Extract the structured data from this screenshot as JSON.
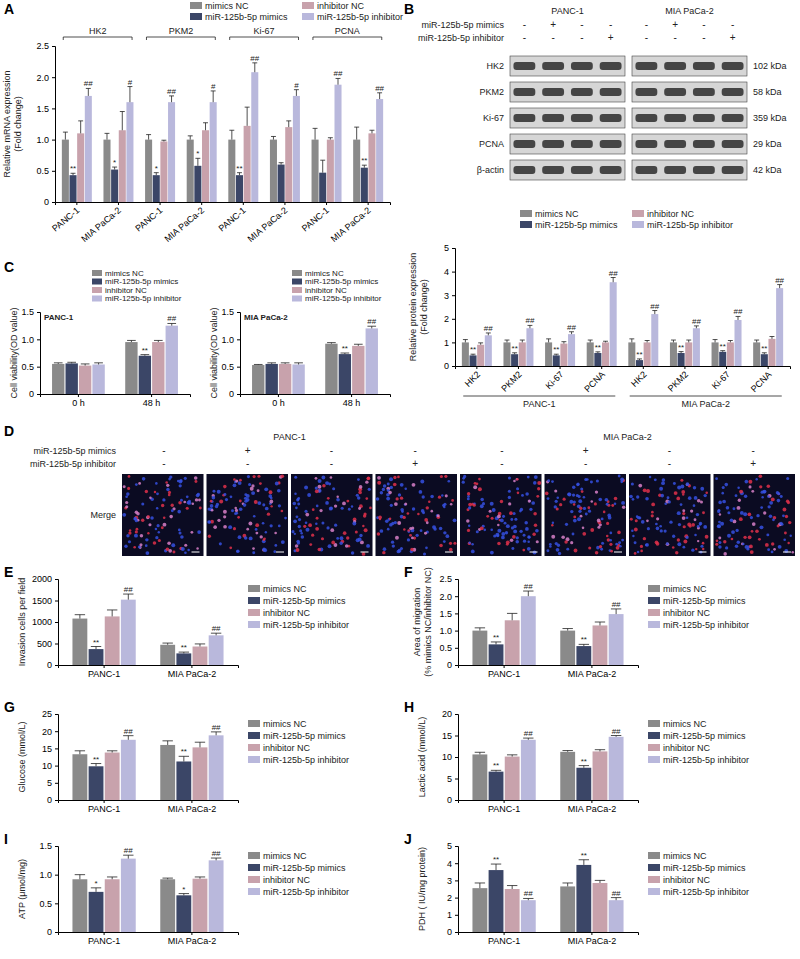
{
  "chart_data": [
    {
      "type": "bar",
      "panel": "A",
      "ylabel": [
        "Relative mRNA expression",
        "(Fold change)"
      ],
      "group_labels": [
        "HK2",
        "PKM2",
        "Ki-67",
        "PCNA"
      ],
      "categories": [
        "PANC-1",
        "MIA PaCa-2",
        "PANC-1",
        "MIA PaCa-2",
        "PANC-1",
        "MIA PaCa-2",
        "PANC-1",
        "MIA PaCa-2"
      ],
      "ylim": [
        0,
        2.5
      ],
      "yticks": [
        0,
        0.5,
        {
          "value": 1,
          "label": "1.0"
        },
        1.5,
        {
          "value": 2,
          "label": "2.0"
        },
        2.5
      ],
      "legend": "top",
      "series": [
        {
          "name": "mimics NC",
          "color": "#8a8a8a",
          "values": [
            1.0,
            1.0,
            1.0,
            1.0,
            1.0,
            1.0,
            1.0,
            1.0
          ],
          "errors": [
            0.12,
            0.1,
            0.08,
            0.06,
            0.15,
            0.05,
            0.18,
            0.2
          ]
        },
        {
          "name": "miR-125b-5p mimics",
          "color": "#3b4667",
          "values": [
            0.43,
            0.52,
            0.43,
            0.58,
            0.43,
            0.6,
            0.47,
            0.55
          ],
          "errors": [
            0.03,
            0.04,
            0.04,
            0.12,
            0.04,
            0.03,
            0.2,
            0.04
          ],
          "significance": [
            "**",
            "*",
            "*",
            "*",
            "**",
            null,
            null,
            "**"
          ]
        },
        {
          "name": "inhibitor NC",
          "color": "#c8a2ac",
          "values": [
            1.1,
            1.15,
            0.97,
            1.15,
            1.22,
            1.2,
            1.0,
            1.1
          ],
          "errors": [
            0.2,
            0.3,
            0.02,
            0.12,
            0.3,
            0.1,
            0.03,
            0.05
          ]
        },
        {
          "name": "miR-125b-5p inhibitor",
          "color": "#b9b8dc",
          "values": [
            1.7,
            1.6,
            1.6,
            1.6,
            2.08,
            1.7,
            1.88,
            1.65
          ],
          "errors": [
            0.12,
            0.25,
            0.1,
            0.18,
            0.15,
            0.1,
            0.1,
            0.1
          ],
          "significance": [
            "##",
            "#",
            "##",
            "#",
            "##",
            "#",
            "##",
            "##"
          ]
        }
      ]
    },
    {
      "type": "blot",
      "panel": "B",
      "cell_lines": [
        "PANC-1",
        "MIA PaCa-2"
      ],
      "conditions": [
        {
          "label": "miR-125b-5p mimics",
          "signs": [
            "-",
            "+",
            "-",
            "-",
            "-",
            "+",
            "-",
            "-"
          ]
        },
        {
          "label": "miR-125b-5p inhibitor",
          "signs": [
            "-",
            "-",
            "-",
            "+",
            "-",
            "-",
            "-",
            "+"
          ]
        }
      ],
      "bands": [
        {
          "label": "HK2",
          "size": "102 kDa"
        },
        {
          "label": "PKM2",
          "size": "58 kDa"
        },
        {
          "label": "Ki-67",
          "size": "359 kDa"
        },
        {
          "label": "PCNA",
          "size": "29 kDa"
        },
        {
          "label": "β-actin",
          "size": "42 kDa"
        }
      ]
    },
    {
      "type": "bar",
      "ylabel": [
        "Relative protein expression",
        "(Fold change)"
      ],
      "group_labels": [
        "PANC-1",
        "MIA PaCa-2"
      ],
      "categories": [
        "HK2",
        "PKM2",
        "Ki-67",
        "PCNA",
        "HK2",
        "PKM2",
        "Ki-67",
        "PCNA"
      ],
      "ylim": [
        0,
        5
      ],
      "yticks": [
        0,
        1,
        2,
        3,
        4,
        5
      ],
      "legend": "top",
      "series": [
        {
          "name": "mimics NC",
          "color": "#8a8a8a",
          "values": [
            1.0,
            1.0,
            1.0,
            1.0,
            1.0,
            1.0,
            1.0,
            1.0
          ],
          "errors": [
            0.12,
            0.1,
            0.15,
            0.1,
            0.15,
            0.1,
            0.12,
            0.1
          ]
        },
        {
          "name": "miR-125b-5p mimics",
          "color": "#3b4667",
          "values": [
            0.45,
            0.5,
            0.45,
            0.55,
            0.25,
            0.55,
            0.6,
            0.5
          ],
          "errors": [
            0.05,
            0.06,
            0.05,
            0.05,
            0.05,
            0.06,
            0.05,
            0.06
          ],
          "significance": [
            "**",
            "**",
            "**",
            "**",
            "**",
            "**",
            "**",
            "**"
          ]
        },
        {
          "name": "inhibitor NC",
          "color": "#c8a2ac",
          "values": [
            0.9,
            1.0,
            0.95,
            1.0,
            1.0,
            1.0,
            1.0,
            1.15
          ],
          "errors": [
            0.08,
            0.1,
            0.08,
            0.05,
            0.08,
            0.1,
            0.08,
            0.1
          ]
        },
        {
          "name": "miR-125b-5p inhibitor",
          "color": "#b9b8dc",
          "values": [
            1.3,
            1.6,
            1.35,
            3.55,
            2.2,
            1.6,
            1.95,
            3.3
          ],
          "errors": [
            0.1,
            0.12,
            0.1,
            0.2,
            0.15,
            0.1,
            0.15,
            0.15
          ],
          "significance": [
            "##",
            "##",
            "##",
            "##",
            "##",
            "##",
            "##",
            "##"
          ]
        }
      ]
    },
    {
      "type": "bar",
      "panel": "C",
      "title": "PANC-1",
      "ylabel": [
        "Cell viability(OD value)"
      ],
      "categories": [
        "0 h",
        "48 h"
      ],
      "ylim": [
        0,
        1.5
      ],
      "yticks": [
        0,
        0.5,
        {
          "value": 1,
          "label": "1.0"
        },
        1.5
      ],
      "legend": "top-right",
      "series": [
        {
          "name": "mimics NC",
          "color": "#8a8a8a",
          "values": [
            0.55,
            0.95
          ],
          "errors": [
            0.02,
            0.03
          ]
        },
        {
          "name": "miR-125b-5p mimics",
          "color": "#3b4667",
          "values": [
            0.56,
            0.7
          ],
          "errors": [
            0.02,
            0.02
          ],
          "significance": [
            null,
            "**"
          ]
        },
        {
          "name": "inhibitor NC",
          "color": "#c8a2ac",
          "values": [
            0.52,
            0.95
          ],
          "errors": [
            0.03,
            0.03
          ]
        },
        {
          "name": "miR-125b-5p inhibitor",
          "color": "#b9b8dc",
          "values": [
            0.54,
            1.25
          ],
          "errors": [
            0.03,
            0.04
          ],
          "significance": [
            null,
            "##"
          ]
        }
      ]
    },
    {
      "type": "bar",
      "title": "MIA PaCa-2",
      "ylabel": [
        "Cell viability(OD value)"
      ],
      "categories": [
        "0 h",
        "48 h"
      ],
      "ylim": [
        0,
        1.5
      ],
      "yticks": [
        0,
        0.5,
        {
          "value": 1,
          "label": "1.0"
        },
        1.5
      ],
      "legend": "top-right",
      "series": [
        {
          "name": "mimics NC",
          "color": "#8a8a8a",
          "values": [
            0.53,
            0.92
          ],
          "errors": [
            0.01,
            0.02
          ]
        },
        {
          "name": "miR-125b-5p mimics",
          "color": "#3b4667",
          "values": [
            0.55,
            0.73
          ],
          "errors": [
            0.02,
            0.02
          ],
          "significance": [
            null,
            "**"
          ]
        },
        {
          "name": "inhibitor NC",
          "color": "#c8a2ac",
          "values": [
            0.55,
            0.88
          ],
          "errors": [
            0.02,
            0.03
          ]
        },
        {
          "name": "miR-125b-5p inhibitor",
          "color": "#b9b8dc",
          "values": [
            0.54,
            1.2
          ],
          "errors": [
            0.03,
            0.04
          ],
          "significance": [
            null,
            "##"
          ]
        }
      ]
    },
    {
      "type": "image_grid",
      "panel": "D",
      "cell_lines": [
        "PANC-1",
        "MIA PaCa-2"
      ],
      "row_label": "Merge",
      "conditions": [
        {
          "label": "miR-125b-5p mimics",
          "signs": [
            "-",
            "+",
            "-",
            "-",
            "-",
            "+",
            "-",
            "-"
          ]
        },
        {
          "label": "miR-125b-5p inhibitor",
          "signs": [
            "-",
            "-",
            "-",
            "+",
            "-",
            "-",
            "-",
            "+"
          ]
        }
      ]
    },
    {
      "type": "bar",
      "panel": "E",
      "ylabel": [
        "Invasion cells per field"
      ],
      "categories": [
        "PANC-1",
        "MIA PaCa-2"
      ],
      "ylim": [
        0,
        2000
      ],
      "yticks": [
        0,
        500,
        1000,
        1500,
        2000
      ],
      "legend": "right",
      "series": [
        {
          "name": "mimics NC",
          "color": "#8a8a8a",
          "values": [
            1080,
            470
          ],
          "errors": [
            90,
            40
          ]
        },
        {
          "name": "miR-125b-5p mimics",
          "color": "#3b4667",
          "values": [
            370,
            270
          ],
          "errors": [
            60,
            30
          ],
          "significance": [
            "**",
            "**"
          ]
        },
        {
          "name": "inhibitor NC",
          "color": "#c8a2ac",
          "values": [
            1130,
            430
          ],
          "errors": [
            150,
            60
          ]
        },
        {
          "name": "miR-125b-5p inhibitor",
          "color": "#b9b8dc",
          "values": [
            1520,
            690
          ],
          "errors": [
            130,
            50
          ],
          "significance": [
            "##",
            "##"
          ]
        }
      ]
    },
    {
      "type": "bar",
      "panel": "F",
      "ylabel": [
        "Area of migration",
        "(% mimics NC/inhibitor NC)"
      ],
      "categories": [
        "PANC-1",
        "MIA PaCa-2"
      ],
      "ylim": [
        0,
        2.5
      ],
      "yticks": [
        0,
        0.5,
        {
          "value": 1,
          "label": "1.0"
        },
        1.5,
        {
          "value": 2,
          "label": "2.0"
        },
        2.5
      ],
      "legend": "right",
      "series": [
        {
          "name": "mimics NC",
          "color": "#8a8a8a",
          "values": [
            1.0,
            1.0
          ],
          "errors": [
            0.08,
            0.06
          ]
        },
        {
          "name": "miR-125b-5p mimics",
          "color": "#3b4667",
          "values": [
            0.6,
            0.55
          ],
          "errors": [
            0.07,
            0.05
          ],
          "significance": [
            "**",
            "**"
          ]
        },
        {
          "name": "inhibitor NC",
          "color": "#c8a2ac",
          "values": [
            1.3,
            1.15
          ],
          "errors": [
            0.2,
            0.1
          ]
        },
        {
          "name": "miR-125b-5p inhibitor",
          "color": "#b9b8dc",
          "values": [
            2.0,
            1.48
          ],
          "errors": [
            0.15,
            0.15
          ],
          "significance": [
            "##",
            "##"
          ]
        }
      ]
    },
    {
      "type": "bar",
      "panel": "G",
      "ylabel": [
        "Glucose (mmol/L)"
      ],
      "categories": [
        "PANC-1",
        "MIA PaCa-2"
      ],
      "ylim": [
        0,
        25
      ],
      "yticks": [
        0,
        5,
        10,
        15,
        20,
        25
      ],
      "legend": "right",
      "series": [
        {
          "name": "mimics NC",
          "color": "#8a8a8a",
          "values": [
            13.3,
            16
          ],
          "errors": [
            1,
            1.2
          ]
        },
        {
          "name": "miR-125b-5p mimics",
          "color": "#3b4667",
          "values": [
            9.8,
            11.2
          ],
          "errors": [
            0.8,
            1.5
          ],
          "significance": [
            "**",
            "**"
          ]
        },
        {
          "name": "inhibitor NC",
          "color": "#c8a2ac",
          "values": [
            13.8,
            15.3
          ],
          "errors": [
            0.5,
            1.5
          ]
        },
        {
          "name": "miR-125b-5p inhibitor",
          "color": "#b9b8dc",
          "values": [
            17.5,
            18.8
          ],
          "errors": [
            1.2,
            1
          ],
          "significance": [
            "##",
            "##"
          ]
        }
      ]
    },
    {
      "type": "bar",
      "panel": "H",
      "ylabel": [
        "Lactic acid (mmol/L)"
      ],
      "categories": [
        "PANC-1",
        "MIA PaCa-2"
      ],
      "ylim": [
        0,
        20
      ],
      "yticks": [
        0,
        5,
        10,
        15,
        20
      ],
      "legend": "right",
      "series": [
        {
          "name": "mimics NC",
          "color": "#8a8a8a",
          "values": [
            10.6,
            11.2
          ],
          "errors": [
            0.5,
            0.3
          ]
        },
        {
          "name": "miR-125b-5p mimics",
          "color": "#3b4667",
          "values": [
            6.6,
            7.5
          ],
          "errors": [
            0.3,
            0.5
          ],
          "significance": [
            "**",
            "**"
          ]
        },
        {
          "name": "inhibitor NC",
          "color": "#c8a2ac",
          "values": [
            10.1,
            11.3
          ],
          "errors": [
            0.4,
            0.4
          ]
        },
        {
          "name": "miR-125b-5p inhibitor",
          "color": "#b9b8dc",
          "values": [
            14,
            14.7
          ],
          "errors": [
            0.4,
            0.3
          ],
          "significance": [
            "##",
            "##"
          ]
        }
      ]
    },
    {
      "type": "bar",
      "panel": "I",
      "ylabel": [
        "ATP (μmol/mg)"
      ],
      "categories": [
        "PANC-1",
        "MIA PaCa-2"
      ],
      "ylim": [
        0,
        1.5
      ],
      "yticks": [
        0,
        0.5,
        {
          "value": 1,
          "label": "1.0"
        },
        1.5
      ],
      "legend": "right",
      "series": [
        {
          "name": "mimics NC",
          "color": "#8a8a8a",
          "values": [
            0.92,
            0.92
          ],
          "errors": [
            0.08,
            0.02
          ]
        },
        {
          "name": "miR-125b-5p mimics",
          "color": "#3b4667",
          "values": [
            0.7,
            0.64
          ],
          "errors": [
            0.07,
            0.03
          ],
          "significance": [
            "*",
            "*"
          ]
        },
        {
          "name": "inhibitor NC",
          "color": "#c8a2ac",
          "values": [
            0.92,
            0.93
          ],
          "errors": [
            0.04,
            0.03
          ]
        },
        {
          "name": "miR-125b-5p inhibitor",
          "color": "#b9b8dc",
          "values": [
            1.28,
            1.25
          ],
          "errors": [
            0.06,
            0.04
          ],
          "significance": [
            "##",
            "##"
          ]
        }
      ]
    },
    {
      "type": "bar",
      "panel": "J",
      "ylabel": [
        "PDH ( IU/mg protein)"
      ],
      "categories": [
        "PANC-1",
        "MIA PaCa-2"
      ],
      "ylim": [
        0,
        5
      ],
      "yticks": [
        0,
        1,
        2,
        3,
        4,
        5
      ],
      "legend": "right",
      "series": [
        {
          "name": "mimics NC",
          "color": "#8a8a8a",
          "values": [
            2.55,
            2.65
          ],
          "errors": [
            0.3,
            0.2
          ]
        },
        {
          "name": "miR-125b-5p mimics",
          "color": "#3b4667",
          "values": [
            3.6,
            3.9
          ],
          "errors": [
            0.35,
            0.3
          ],
          "significance": [
            "**",
            "**"
          ]
        },
        {
          "name": "inhibitor NC",
          "color": "#c8a2ac",
          "values": [
            2.5,
            2.85
          ],
          "errors": [
            0.2,
            0.15
          ]
        },
        {
          "name": "miR-125b-5p inhibitor",
          "color": "#b9b8dc",
          "values": [
            1.85,
            1.85
          ],
          "errors": [
            0.1,
            0.15
          ],
          "significance": [
            "##",
            "##"
          ]
        }
      ]
    }
  ]
}
